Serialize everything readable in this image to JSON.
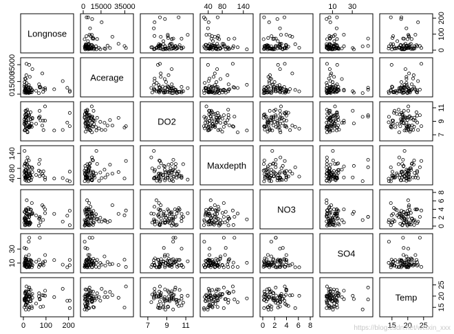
{
  "chart_data": {
    "type": "scatter",
    "variables": [
      {
        "name": "Longnose",
        "range": [
          0,
          210
        ],
        "ticks": [
          0,
          100,
          200
        ],
        "tick_labels": [
          "0",
          "100",
          "200"
        ]
      },
      {
        "name": "Acerage",
        "range": [
          0,
          40000
        ],
        "ticks": [
          0,
          15000,
          35000
        ],
        "tick_labels": [
          "0",
          "15000",
          "35000"
        ]
      },
      {
        "name": "DO2",
        "range": [
          6.5,
          11.5
        ],
        "ticks": [
          7,
          9,
          11
        ],
        "tick_labels": [
          "7",
          "9",
          "11"
        ]
      },
      {
        "name": "Maxdepth",
        "range": [
          25,
          160
        ],
        "ticks": [
          40,
          80,
          140
        ],
        "tick_labels": [
          "40",
          "80",
          "140"
        ]
      },
      {
        "name": "NO3",
        "range": [
          0,
          8
        ],
        "ticks": [
          0,
          2,
          4,
          6,
          8
        ],
        "tick_labels": [
          "0",
          "2",
          "4",
          "6",
          "8"
        ]
      },
      {
        "name": "SO4",
        "range": [
          0,
          48
        ],
        "ticks": [
          10,
          30
        ],
        "tick_labels": [
          "10",
          "30"
        ]
      },
      {
        "name": "Temp",
        "range": [
          12,
          27
        ],
        "ticks": [
          15,
          20,
          25
        ],
        "tick_labels": [
          "15",
          "20",
          "25"
        ]
      }
    ],
    "x_axis_side": [
      "bottom",
      "top",
      "bottom",
      "top",
      "bottom",
      "top",
      "bottom"
    ],
    "y_axis_side": [
      "right",
      "left",
      "right",
      "left",
      "right",
      "left",
      "right"
    ],
    "n_points": 68,
    "seed": 20240601
  },
  "watermark": "https://blog.csdn.net/weixin_xxx"
}
